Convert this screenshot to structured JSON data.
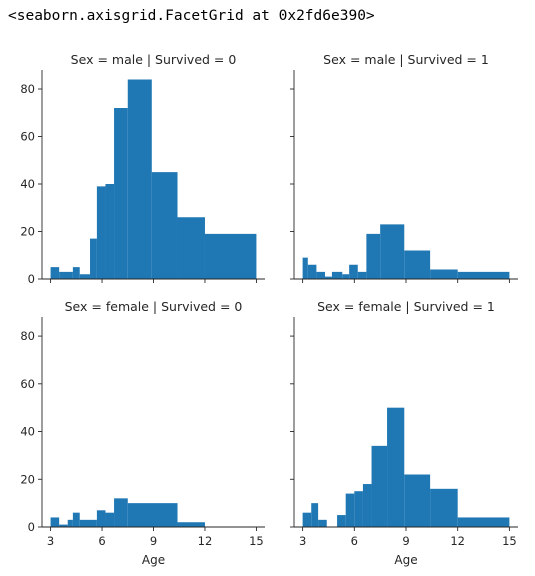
{
  "output_repr": "<seaborn.axisgrid.FacetGrid at 0x2fd6e390>",
  "colors": {
    "bar": "#1f77b4",
    "axis": "#262626"
  },
  "chart_data": {
    "type": "bar",
    "kind": "facet-histogram",
    "xlabel": "Age",
    "ylabel": "",
    "xlim": [
      2.5,
      15.5
    ],
    "ylim": [
      0,
      88
    ],
    "xticks": [
      3,
      6,
      9,
      12,
      15
    ],
    "yticks": [
      0,
      20,
      40,
      60,
      80
    ],
    "grid": false,
    "panels": [
      {
        "title": "Sex = male | Survived = 0",
        "bins": [
          {
            "x0": 3.0,
            "x1": 3.5,
            "value": 5
          },
          {
            "x0": 3.5,
            "x1": 4.3,
            "value": 3
          },
          {
            "x0": 4.3,
            "x1": 4.7,
            "value": 5
          },
          {
            "x0": 4.7,
            "x1": 5.3,
            "value": 2
          },
          {
            "x0": 5.3,
            "x1": 5.7,
            "value": 17
          },
          {
            "x0": 5.7,
            "x1": 6.2,
            "value": 39
          },
          {
            "x0": 6.2,
            "x1": 6.7,
            "value": 40
          },
          {
            "x0": 6.7,
            "x1": 7.5,
            "value": 72
          },
          {
            "x0": 7.5,
            "x1": 8.9,
            "value": 84
          },
          {
            "x0": 8.9,
            "x1": 10.4,
            "value": 45
          },
          {
            "x0": 10.4,
            "x1": 12.0,
            "value": 26
          },
          {
            "x0": 12.0,
            "x1": 15.0,
            "value": 19
          }
        ]
      },
      {
        "title": "Sex = male | Survived = 1",
        "bins": [
          {
            "x0": 3.0,
            "x1": 3.3,
            "value": 9
          },
          {
            "x0": 3.3,
            "x1": 3.8,
            "value": 6
          },
          {
            "x0": 3.8,
            "x1": 4.3,
            "value": 3
          },
          {
            "x0": 4.3,
            "x1": 4.7,
            "value": 1
          },
          {
            "x0": 4.7,
            "x1": 5.3,
            "value": 3
          },
          {
            "x0": 5.3,
            "x1": 5.7,
            "value": 2
          },
          {
            "x0": 5.7,
            "x1": 6.2,
            "value": 6
          },
          {
            "x0": 6.2,
            "x1": 6.7,
            "value": 3
          },
          {
            "x0": 6.7,
            "x1": 7.5,
            "value": 19
          },
          {
            "x0": 7.5,
            "x1": 8.9,
            "value": 23
          },
          {
            "x0": 8.9,
            "x1": 10.4,
            "value": 12
          },
          {
            "x0": 10.4,
            "x1": 12.0,
            "value": 4
          },
          {
            "x0": 12.0,
            "x1": 15.0,
            "value": 3
          }
        ]
      },
      {
        "title": "Sex = female | Survived = 0",
        "bins": [
          {
            "x0": 3.0,
            "x1": 3.5,
            "value": 4
          },
          {
            "x0": 3.5,
            "x1": 4.0,
            "value": 1
          },
          {
            "x0": 4.0,
            "x1": 4.3,
            "value": 3
          },
          {
            "x0": 4.3,
            "x1": 4.7,
            "value": 6
          },
          {
            "x0": 4.7,
            "x1": 5.7,
            "value": 3
          },
          {
            "x0": 5.7,
            "x1": 6.2,
            "value": 7
          },
          {
            "x0": 6.2,
            "x1": 6.7,
            "value": 6
          },
          {
            "x0": 6.7,
            "x1": 7.5,
            "value": 12
          },
          {
            "x0": 7.5,
            "x1": 10.4,
            "value": 10
          },
          {
            "x0": 10.4,
            "x1": 12.0,
            "value": 2
          }
        ]
      },
      {
        "title": "Sex = female | Survived = 1",
        "bins": [
          {
            "x0": 3.0,
            "x1": 3.5,
            "value": 6
          },
          {
            "x0": 3.5,
            "x1": 3.9,
            "value": 10
          },
          {
            "x0": 3.9,
            "x1": 4.4,
            "value": 3
          },
          {
            "x0": 4.4,
            "x1": 5.0,
            "value": 0
          },
          {
            "x0": 5.0,
            "x1": 5.5,
            "value": 5
          },
          {
            "x0": 5.5,
            "x1": 6.0,
            "value": 14
          },
          {
            "x0": 6.0,
            "x1": 6.5,
            "value": 15
          },
          {
            "x0": 6.5,
            "x1": 7.0,
            "value": 18
          },
          {
            "x0": 7.0,
            "x1": 7.9,
            "value": 34
          },
          {
            "x0": 7.9,
            "x1": 8.9,
            "value": 50
          },
          {
            "x0": 8.9,
            "x1": 10.4,
            "value": 22
          },
          {
            "x0": 10.4,
            "x1": 12.0,
            "value": 16
          },
          {
            "x0": 12.0,
            "x1": 15.0,
            "value": 4
          }
        ]
      }
    ]
  }
}
